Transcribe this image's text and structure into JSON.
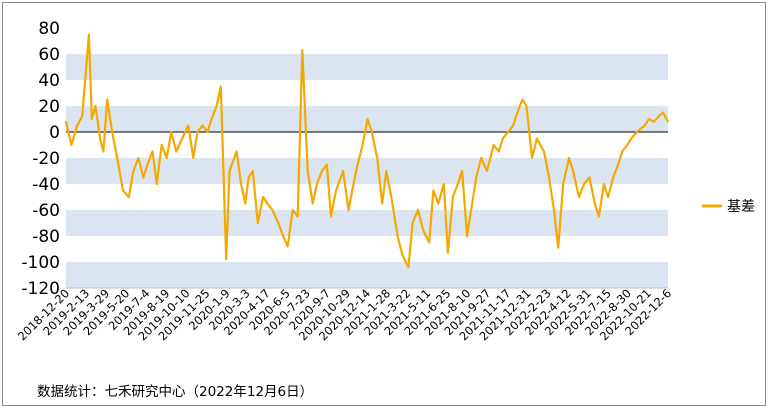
{
  "source_note": "数据统计：七禾研究中心（2022年12月6日）",
  "chart_data": {
    "type": "line",
    "title": "",
    "xlabel": "",
    "ylabel": "",
    "ylim": [
      -120,
      80
    ],
    "y_ticks": [
      80,
      60,
      40,
      20,
      0,
      -20,
      -40,
      -60,
      -80,
      -100,
      -120
    ],
    "x_tick_labels": [
      "2018-12-20",
      "2019-2-13",
      "2019-3-29",
      "2019-5-20",
      "2019-7-4",
      "2019-8-19",
      "2019-10-10",
      "2019-11-25",
      "2020-1-9",
      "2020-3-3",
      "2020-4-17",
      "2020-6-5",
      "2020-7-23",
      "2020-9-7",
      "2020-10-29",
      "2020-12-14",
      "2021-1-28",
      "2021-3-22",
      "2021-5-11",
      "2021-6-25",
      "2021-8-10",
      "2021-9-27",
      "2021-11-17",
      "2021-12-31",
      "2022-2-23",
      "2022-4-12",
      "2022-5-31",
      "2022-7-15",
      "2022-8-30",
      "2022-10-21",
      "2022-12-6"
    ],
    "grid": "alternating horizontal bands",
    "band_color": "#dbe5f1",
    "line_color": "#f5a800",
    "zero_line_color": "#000000",
    "legend_position": "right",
    "series": [
      {
        "name": "基差",
        "x": [
          "2018-12-20",
          "2019-1-2",
          "2019-1-16",
          "2019-1-28",
          "2019-2-13",
          "2019-2-20",
          "2019-3-1",
          "2019-3-12",
          "2019-3-20",
          "2019-3-29",
          "2019-4-10",
          "2019-4-22",
          "2019-5-6",
          "2019-5-20",
          "2019-5-31",
          "2019-6-12",
          "2019-6-24",
          "2019-7-4",
          "2019-7-16",
          "2019-7-26",
          "2019-8-7",
          "2019-8-19",
          "2019-8-30",
          "2019-9-11",
          "2019-9-25",
          "2019-10-10",
          "2019-10-22",
          "2019-11-1",
          "2019-11-13",
          "2019-11-25",
          "2019-12-5",
          "2019-12-17",
          "2019-12-27",
          "2020-1-9",
          "2020-1-17",
          "2020-2-3",
          "2020-2-14",
          "2020-2-24",
          "2020-3-3",
          "2020-3-13",
          "2020-3-25",
          "2020-4-7",
          "2020-4-17",
          "2020-4-29",
          "2020-5-13",
          "2020-5-25",
          "2020-6-5",
          "2020-6-17",
          "2020-6-29",
          "2020-7-10",
          "2020-7-23",
          "2020-8-4",
          "2020-8-14",
          "2020-8-26",
          "2020-9-7",
          "2020-9-17",
          "2020-9-29",
          "2020-10-16",
          "2020-10-29",
          "2020-11-10",
          "2020-11-20",
          "2020-12-2",
          "2020-12-14",
          "2020-12-24",
          "2021-1-6",
          "2021-1-18",
          "2021-1-28",
          "2021-2-9",
          "2021-2-24",
          "2021-3-8",
          "2021-3-22",
          "2021-4-1",
          "2021-4-14",
          "2021-4-26",
          "2021-5-11",
          "2021-5-21",
          "2021-6-2",
          "2021-6-15",
          "2021-6-25",
          "2021-7-7",
          "2021-7-19",
          "2021-7-29",
          "2021-8-10",
          "2021-8-20",
          "2021-9-1",
          "2021-9-13",
          "2021-9-27",
          "2021-10-13",
          "2021-10-25",
          "2021-11-4",
          "2021-11-17",
          "2021-11-29",
          "2021-12-9",
          "2021-12-21",
          "2021-12-31",
          "2022-1-13",
          "2022-1-25",
          "2022-2-11",
          "2022-2-23",
          "2022-3-7",
          "2022-3-17",
          "2022-3-29",
          "2022-4-12",
          "2022-4-22",
          "2022-5-6",
          "2022-5-18",
          "2022-5-31",
          "2022-6-13",
          "2022-6-23",
          "2022-7-5",
          "2022-7-15",
          "2022-7-27",
          "2022-8-8",
          "2022-8-18",
          "2022-8-30",
          "2022-9-9",
          "2022-9-22",
          "2022-10-11",
          "2022-10-21",
          "2022-11-2",
          "2022-11-14",
          "2022-11-24",
          "2022-12-6"
        ],
        "values": [
          8,
          -10,
          5,
          12,
          75,
          10,
          20,
          -5,
          -15,
          25,
          0,
          -20,
          -45,
          -50,
          -30,
          -20,
          -35,
          -25,
          -15,
          -40,
          -10,
          -20,
          0,
          -15,
          -5,
          5,
          -20,
          0,
          5,
          0,
          10,
          20,
          35,
          -98,
          -30,
          -15,
          -40,
          -55,
          -35,
          -30,
          -70,
          -50,
          -55,
          -60,
          -70,
          -80,
          -88,
          -60,
          -65,
          63,
          -30,
          -55,
          -40,
          -30,
          -25,
          -65,
          -45,
          -30,
          -60,
          -40,
          -25,
          -10,
          10,
          0,
          -20,
          -55,
          -30,
          -50,
          -80,
          -95,
          -104,
          -70,
          -60,
          -75,
          -85,
          -45,
          -55,
          -40,
          -93,
          -50,
          -40,
          -30,
          -80,
          -60,
          -35,
          -20,
          -30,
          -10,
          -15,
          -5,
          0,
          5,
          15,
          25,
          20,
          -20,
          -5,
          -15,
          -35,
          -60,
          -89,
          -40,
          -20,
          -30,
          -50,
          -40,
          -35,
          -55,
          -65,
          -40,
          -50,
          -35,
          -25,
          -15,
          -10,
          -5,
          0,
          5,
          10,
          8,
          12,
          15,
          8
        ]
      }
    ]
  }
}
